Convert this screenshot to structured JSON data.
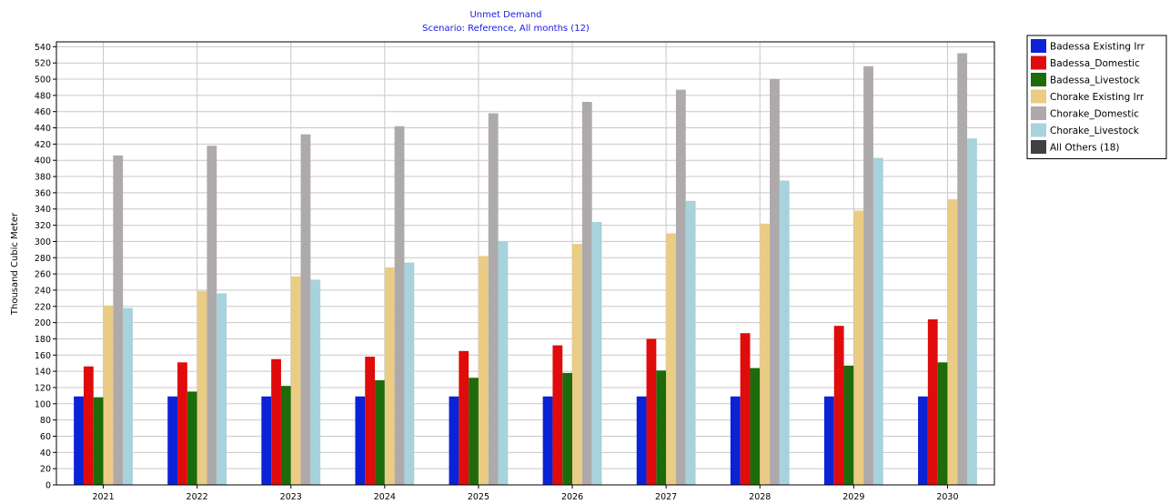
{
  "chart_data": {
    "type": "bar",
    "title": "Unmet Demand",
    "subtitle": "Scenario: Reference,  All months (12)",
    "ylabel": "Thousand Cubic Meter",
    "xlabel": "",
    "ylim": [
      0,
      546
    ],
    "ytick_step": 20,
    "y_ticks_max": 540,
    "grid": true,
    "legend_position": "right",
    "categories": [
      "2021",
      "2022",
      "2023",
      "2024",
      "2025",
      "2026",
      "2027",
      "2028",
      "2029",
      "2030"
    ],
    "series": [
      {
        "name": "Badessa Existing Irr",
        "color": "#0b22d6",
        "values": [
          109,
          109,
          109,
          109,
          109,
          109,
          109,
          109,
          109,
          109
        ]
      },
      {
        "name": "Badessa_Domestic",
        "color": "#e00b0b",
        "values": [
          146,
          151,
          155,
          158,
          165,
          172,
          180,
          187,
          196,
          204
        ]
      },
      {
        "name": "Badessa_Livestock",
        "color": "#1e6b0c",
        "values": [
          108,
          115,
          122,
          129,
          132,
          138,
          141,
          144,
          147,
          151
        ]
      },
      {
        "name": "Chorake Existing Irr",
        "color": "#ebcc85",
        "values": [
          221,
          239,
          257,
          268,
          282,
          297,
          310,
          322,
          338,
          352
        ]
      },
      {
        "name": "Chorake_Domestic",
        "color": "#aeaaac",
        "values": [
          406,
          418,
          432,
          442,
          458,
          472,
          487,
          500,
          516,
          532
        ]
      },
      {
        "name": "Chorake_Livestock",
        "color": "#a8d2dc",
        "values": [
          218,
          236,
          253,
          274,
          300,
          324,
          350,
          375,
          403,
          427
        ]
      },
      {
        "name": "All Others (18)",
        "color": "#404040",
        "values": [
          0,
          0,
          0,
          0,
          0,
          0,
          0,
          0,
          0,
          0
        ]
      }
    ]
  }
}
